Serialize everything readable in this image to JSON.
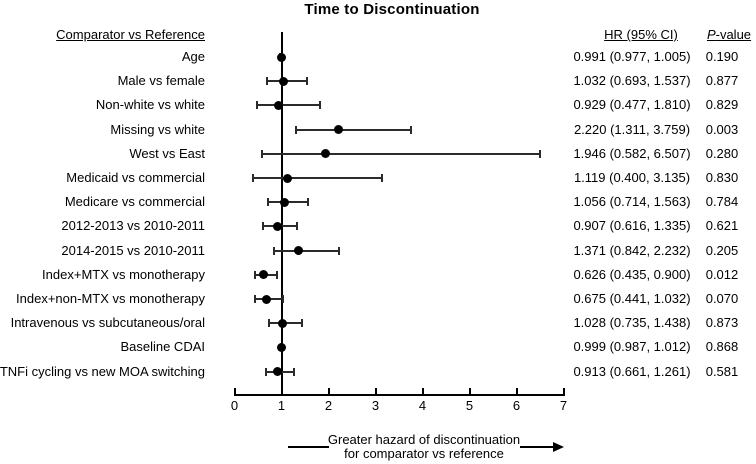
{
  "title": "Time to Discontinuation",
  "colors": {
    "ink": "#000000",
    "ci_line": "#2b2b2b",
    "background": "#ffffff"
  },
  "icons": {
    "greater_hazard_arrow": "arrow-right"
  },
  "headers": {
    "comparator": "Comparator vs Reference",
    "hr": "HR (95% CI)",
    "pvalue_italic": "P",
    "pvalue_rest": "-value"
  },
  "footer": {
    "line1": "Greater hazard of discontinuation",
    "line2": "for comparator vs reference"
  },
  "chart_data": {
    "type": "scatter",
    "subtype": "forest-plot",
    "title": "Time to Discontinuation",
    "xlabel": "",
    "ylabel": "",
    "xlim": [
      0,
      7
    ],
    "x_ticks": [
      0,
      1,
      2,
      3,
      4,
      5,
      6,
      7
    ],
    "reference_line_x": 1,
    "grid": false,
    "rows": [
      {
        "label": "Age",
        "hr": 0.991,
        "lo": 0.977,
        "hi": 1.005,
        "hr_text": "0.991 (0.977, 1.005)",
        "p": "0.190"
      },
      {
        "label": "Male vs female",
        "hr": 1.032,
        "lo": 0.693,
        "hi": 1.537,
        "hr_text": "1.032 (0.693, 1.537)",
        "p": "0.877"
      },
      {
        "label": "Non-white vs white",
        "hr": 0.929,
        "lo": 0.477,
        "hi": 1.81,
        "hr_text": "0.929 (0.477, 1.810)",
        "p": "0.829"
      },
      {
        "label": "Missing vs white",
        "hr": 2.22,
        "lo": 1.311,
        "hi": 3.759,
        "hr_text": "2.220 (1.311, 3.759)",
        "p": "0.003"
      },
      {
        "label": "West vs East",
        "hr": 1.946,
        "lo": 0.582,
        "hi": 6.507,
        "hr_text": "1.946 (0.582, 6.507)",
        "p": "0.280"
      },
      {
        "label": "Medicaid vs commercial",
        "hr": 1.119,
        "lo": 0.4,
        "hi": 3.135,
        "hr_text": "1.119 (0.400, 3.135)",
        "p": "0.830"
      },
      {
        "label": "Medicare vs commercial",
        "hr": 1.056,
        "lo": 0.714,
        "hi": 1.563,
        "hr_text": "1.056 (0.714, 1.563)",
        "p": "0.784"
      },
      {
        "label": "2012-2013 vs 2010-2011",
        "hr": 0.907,
        "lo": 0.616,
        "hi": 1.335,
        "hr_text": "0.907 (0.616, 1.335)",
        "p": "0.621"
      },
      {
        "label": "2014-2015 vs 2010-2011",
        "hr": 1.371,
        "lo": 0.842,
        "hi": 2.232,
        "hr_text": "1.371 (0.842, 2.232)",
        "p": "0.205"
      },
      {
        "label": "Index+MTX vs monotherapy",
        "hr": 0.626,
        "lo": 0.435,
        "hi": 0.9,
        "hr_text": "0.626 (0.435, 0.900)",
        "p": "0.012"
      },
      {
        "label": "Index+non-MTX vs monotherapy",
        "hr": 0.675,
        "lo": 0.441,
        "hi": 1.032,
        "hr_text": "0.675 (0.441, 1.032)",
        "p": "0.070"
      },
      {
        "label": "Intravenous vs subcutaneous/oral",
        "hr": 1.028,
        "lo": 0.735,
        "hi": 1.438,
        "hr_text": "1.028 (0.735, 1.438)",
        "p": "0.873"
      },
      {
        "label": "Baseline CDAI",
        "hr": 0.999,
        "lo": 0.987,
        "hi": 1.012,
        "hr_text": "0.999 (0.987, 1.012)",
        "p": "0.868"
      },
      {
        "label": "TNFi cycling vs new MOA switching",
        "hr": 0.913,
        "lo": 0.661,
        "hi": 1.261,
        "hr_text": "0.913 (0.661, 1.261)",
        "p": "0.581"
      }
    ],
    "annotation": "Greater hazard of discontinuation for comparator vs reference (arrow pointing right)"
  }
}
